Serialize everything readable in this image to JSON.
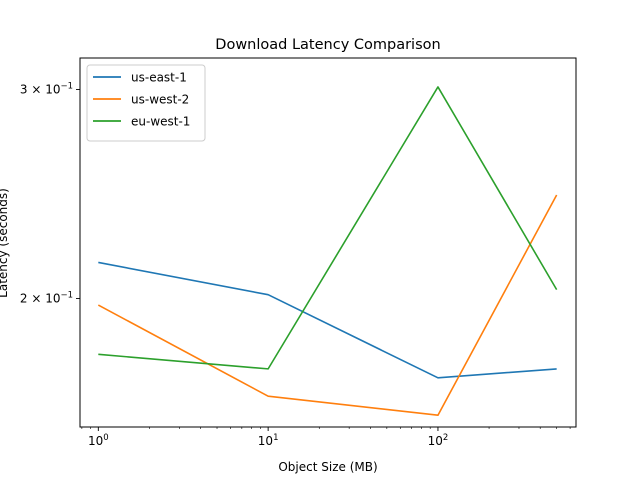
{
  "chart_data": {
    "type": "line",
    "title": "Download Latency Comparison",
    "xlabel": "Object Size (MB)",
    "ylabel": "Latency (seconds)",
    "x_scale": "log",
    "y_scale": "log",
    "xlim": [
      0.78,
      650
    ],
    "ylim": [
      0.1559,
      0.3189
    ],
    "x": [
      1,
      10,
      100,
      500
    ],
    "x_ticks": [
      {
        "value": 1,
        "base": "10",
        "exp": "0"
      },
      {
        "value": 10,
        "base": "10",
        "exp": "1"
      },
      {
        "value": 100,
        "base": "10",
        "exp": "2"
      }
    ],
    "y_ticks": [
      {
        "value": 0.2,
        "mantissa": "2",
        "exp": "−1"
      },
      {
        "value": 0.3,
        "mantissa": "3",
        "exp": "−1"
      }
    ],
    "grid": false,
    "legend_position": "upper-left",
    "series": [
      {
        "name": "us-east-1",
        "color": "#1f77b4",
        "values": [
          0.2145,
          0.2015,
          0.1715,
          0.1745
        ]
      },
      {
        "name": "us-west-2",
        "color": "#ff7f0e",
        "values": [
          0.1975,
          0.1655,
          0.1595,
          0.2445
        ]
      },
      {
        "name": "eu-west-1",
        "color": "#2ca02c",
        "values": [
          0.1795,
          0.1745,
          0.3015,
          0.2035
        ]
      }
    ]
  }
}
